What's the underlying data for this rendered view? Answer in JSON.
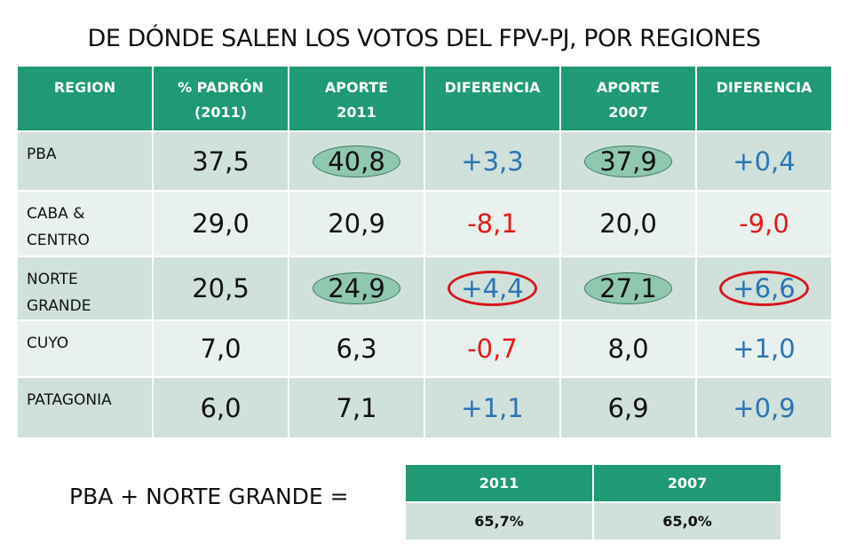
{
  "title": "DE DÓNDE SALEN LOS VOTOS DEL FPV-PJ, POR REGIONES",
  "headers": [
    "REGION",
    "% PADRÓN\n(2011)",
    "APORTE\n2011",
    "DIFERENCIA",
    "APORTE\n2007",
    "DIFERENCIA"
  ],
  "rows": [
    {
      "region": "PBA",
      "padron": "37,5",
      "aporte2011": "40,8",
      "dif2011": "+3,3",
      "aporte2007": "37,9",
      "dif2007": "+0,4",
      "highlight_aporte": true,
      "highlight_dif": false
    },
    {
      "region": "CABA &\nCENTRO",
      "padron": "29,0",
      "aporte2011": "20,9",
      "dif2011": "-8,1",
      "aporte2007": "20,0",
      "dif2007": "-9,0",
      "highlight_aporte": false,
      "highlight_dif": false
    },
    {
      "region": "NORTE\nGRANDE",
      "padron": "20,5",
      "aporte2011": "24,9",
      "dif2011": "+4,4",
      "aporte2007": "27,1",
      "dif2007": "+6,6",
      "highlight_aporte": true,
      "highlight_dif": true
    },
    {
      "region": "CUYO",
      "padron": "7,0",
      "aporte2011": "6,3",
      "dif2011": "-0,7",
      "aporte2007": "8,0",
      "dif2007": "+1,0",
      "highlight_aporte": false,
      "highlight_dif": false
    },
    {
      "region": "PATAGONIA",
      "padron": "6,0",
      "aporte2011": "7,1",
      "dif2011": "+1,1",
      "aporte2007": "6,9",
      "dif2007": "+0,9",
      "highlight_aporte": false,
      "highlight_dif": false
    }
  ],
  "summary": {
    "label": "PBA + NORTE GRANDE =",
    "headers": [
      "2011",
      "2007"
    ],
    "values": [
      "65,7%",
      "65,0%"
    ]
  },
  "colors": {
    "header": "#1f9a74",
    "positive": "#2c74b3",
    "negative": "#e31b1b",
    "highlight_oval": "#8fc7b0",
    "alert_oval": "#d9141b"
  }
}
